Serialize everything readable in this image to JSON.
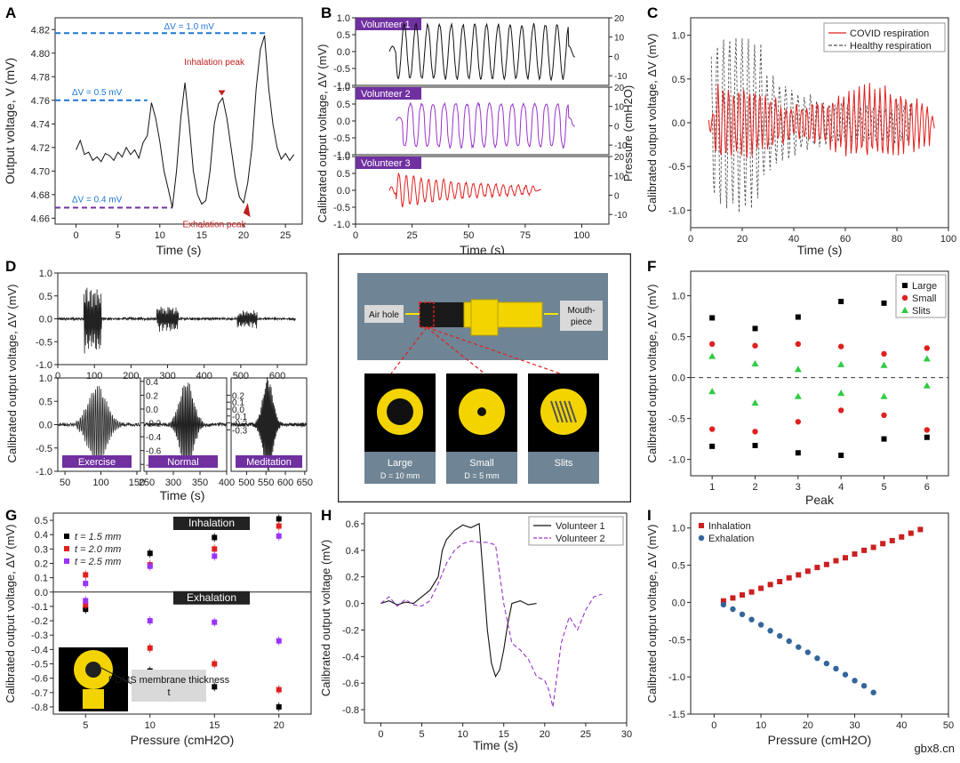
{
  "colors": {
    "blue": "#1f77d0",
    "purple": "#7030a0",
    "red": "#e0201e",
    "black": "#111111",
    "violet": "#9933cc",
    "label_bg": "#7030a0",
    "teal": "#4477aa",
    "yellow": "#f3d400",
    "mid_grey": "#6f8494"
  },
  "watermark": "gbx8.cn",
  "panels": {
    "A": {
      "letter": "A",
      "xlabel": "Time (s)",
      "ylabel": "Output voltage, V (mV)",
      "xlim": [
        -2.5,
        27
      ],
      "ylim": [
        4.655,
        4.83
      ],
      "xticks": [
        0,
        5,
        10,
        15,
        20,
        25
      ],
      "yticks": [
        4.66,
        4.68,
        4.7,
        4.72,
        4.74,
        4.76,
        4.78,
        4.8,
        4.82
      ],
      "series": [
        {
          "x": [
            0,
            0.5,
            1,
            1.5,
            2,
            2.5,
            3,
            3.5,
            4,
            4.5,
            5,
            5.5,
            6,
            6.5,
            7,
            7.5,
            8,
            8.5,
            9,
            9.5,
            10,
            10.5,
            11,
            11.5,
            12,
            12.5,
            13,
            13.5,
            14,
            14.5,
            15,
            15.5,
            16,
            16.5,
            17,
            17.5,
            18,
            18.5,
            19,
            19.5,
            20,
            20.5,
            21,
            21.5,
            22,
            22.5,
            23,
            23.5,
            24,
            24.5,
            25,
            25.5,
            26
          ],
          "y": [
            4.718,
            4.726,
            4.714,
            4.716,
            4.709,
            4.712,
            4.708,
            4.715,
            4.713,
            4.709,
            4.716,
            4.712,
            4.72,
            4.714,
            4.718,
            4.711,
            4.724,
            4.73,
            4.758,
            4.745,
            4.725,
            4.7,
            4.685,
            4.669,
            4.7,
            4.745,
            4.775,
            4.74,
            4.7,
            4.68,
            4.672,
            4.675,
            4.7,
            4.74,
            4.757,
            4.762,
            4.745,
            4.72,
            4.695,
            4.678,
            4.673,
            4.69,
            4.72,
            4.77,
            4.803,
            4.815,
            4.77,
            4.74,
            4.72,
            4.71,
            4.715,
            4.709,
            4.714
          ],
          "color": "#111111"
        }
      ],
      "annotations": {
        "dv1": "ΔV = 1.0 mV",
        "dv05": "ΔV = 0.5 mV",
        "dv04": "ΔV = 0.4 mV",
        "inh": "Inhalation peak",
        "exh": "Exhalation peak"
      },
      "ref_lines": [
        {
          "y": 4.817,
          "x0": -2.5,
          "x1": 22.8,
          "color": "#1f77d0"
        },
        {
          "y": 4.76,
          "x0": -2.5,
          "x1": 8.5,
          "color": "#1f77d0"
        },
        {
          "y": 4.669,
          "x0": -2.5,
          "x1": 11.5,
          "color": "#7030a0"
        }
      ]
    },
    "B": {
      "letter": "B",
      "xlabel": "Time (s)",
      "ylabel": "Calibrated output voltage, ΔV (mV)",
      "ylabel_right": "Pressure (cmH2O)",
      "xlim": [
        0,
        112
      ],
      "xticks": [
        0,
        25,
        50,
        75,
        100
      ],
      "left_ylim": [
        -1.0,
        1.0
      ],
      "left_yticks": [
        -1.0,
        -0.5,
        0.0,
        0.5,
        1.0
      ],
      "right_ylim": [
        -15,
        20
      ],
      "right_yticks": [
        -10,
        0,
        10,
        20
      ],
      "sub": [
        {
          "label": "Volunteer 1",
          "color": "#111111",
          "t0": 15,
          "t1": 97,
          "period": 5.2,
          "amp": 0.8
        },
        {
          "label": "Volunteer 2",
          "color": "#9933cc",
          "t0": 18,
          "t1": 97,
          "period": 5.0,
          "amp": 0.85
        },
        {
          "label": "Volunteer 3",
          "color": "#e0201e",
          "t0": 15,
          "t1": 82,
          "period": 3.3,
          "amp": 0.55
        }
      ]
    },
    "C": {
      "letter": "C",
      "xlabel": "Time (s)",
      "ylabel": "Calibrated output voltage, ΔV (mV)",
      "xlim": [
        0,
        100
      ],
      "ylim": [
        -1.2,
        1.2
      ],
      "xticks": [
        0,
        20,
        40,
        60,
        80,
        100
      ],
      "yticks": [
        -1.0,
        -0.5,
        0.0,
        0.5,
        1.0
      ],
      "legend": [
        {
          "label": "COVID respiration",
          "color": "#e0201e",
          "dash": false
        },
        {
          "label": "Healthy respiration",
          "color": "#555555",
          "dash": true
        }
      ]
    },
    "D": {
      "letter": "D",
      "ylabel": "Calibrated output voltage, ΔV (mV)",
      "xlabel": "Time (s)",
      "top_xlim": [
        0,
        680
      ],
      "top_xticks": [
        0,
        100,
        200,
        300,
        400,
        500,
        600
      ],
      "top_ylim": [
        -1.0,
        1.0
      ],
      "top_yticks": [
        -1.0,
        -0.5,
        0.0,
        0.5,
        1.0
      ],
      "bottom": [
        {
          "label": "Exercise",
          "xlim": [
            40,
            155
          ],
          "xticks": [
            50,
            100,
            150
          ],
          "ylim": [
            -1.0,
            1.0
          ],
          "yticks": [
            -1.0,
            -0.5,
            0.0,
            0.5,
            1.0
          ],
          "right_yticks": [
            -0.8,
            -0.6,
            -0.4,
            -0.2,
            0.0,
            0.2,
            0.4
          ],
          "center": 95,
          "amp": 0.85
        },
        {
          "label": "Normal",
          "xlim": [
            245,
            400
          ],
          "xticks": [
            250,
            300,
            350,
            400
          ],
          "ylim": [
            -0.3,
            0.3
          ],
          "yticks": [],
          "right_yticks": [
            -0.3,
            -0.2,
            -0.1,
            0.0,
            0.1,
            0.2
          ],
          "center": 325,
          "amp": 0.28
        },
        {
          "label": "Meditation",
          "xlim": [
            460,
            655
          ],
          "xticks": [
            500,
            550,
            600,
            650
          ],
          "ylim": [
            -0.2,
            0.2
          ],
          "yticks": [],
          "right_yticks": [],
          "center": 555,
          "amp": 0.2
        }
      ]
    },
    "E": {
      "letter": "E",
      "air_hole": "Air hole",
      "mouthpiece": "Mouth-piece",
      "large": "Large",
      "large_d": "D = 10 mm",
      "small": "Small",
      "small_d": "D = 5 mm",
      "slits": "Slits"
    },
    "F": {
      "letter": "F",
      "xlabel": "Peak",
      "ylabel": "Calibrated output voltage, ΔV (mV)",
      "xlim": [
        0.5,
        6.5
      ],
      "ylim": [
        -1.2,
        1.3
      ],
      "xticks": [
        1,
        2,
        3,
        4,
        5,
        6
      ],
      "yticks": [
        -1.0,
        -0.5,
        0.0,
        0.5,
        1.0
      ],
      "series": [
        {
          "name": "Large",
          "marker": "square",
          "color": "#000000",
          "x": [
            1,
            2,
            3,
            4,
            5,
            6,
            1,
            2,
            3,
            4,
            5,
            6
          ],
          "y": [
            0.73,
            0.6,
            0.74,
            0.93,
            0.91,
            null,
            -0.84,
            -0.83,
            -0.92,
            -0.95,
            -0.75,
            -0.73
          ]
        },
        {
          "name": "Small",
          "marker": "circle",
          "color": "#e0201e",
          "x": [
            1,
            2,
            3,
            4,
            5,
            6,
            1,
            2,
            3,
            4,
            5,
            6
          ],
          "y": [
            0.41,
            0.39,
            0.41,
            0.38,
            0.29,
            0.36,
            -0.63,
            -0.66,
            -0.54,
            -0.4,
            -0.46,
            -0.64
          ]
        },
        {
          "name": "Slits",
          "marker": "triangle",
          "color": "#2ecc40",
          "x": [
            1,
            2,
            3,
            4,
            5,
            6,
            1,
            2,
            3,
            4,
            5,
            6
          ],
          "y": [
            0.26,
            0.17,
            0.1,
            0.16,
            0.15,
            0.23,
            -0.17,
            -0.31,
            -0.23,
            -0.19,
            -0.23,
            -0.1
          ]
        }
      ]
    },
    "G": {
      "letter": "G",
      "xlabel": "Pressure (cmH2O)",
      "ylabel": "Calibrated output voltage, ΔV (mV)",
      "xlim": [
        2.5,
        22.5
      ],
      "ylim": [
        -0.85,
        0.55
      ],
      "xticks": [
        5,
        10,
        15,
        20
      ],
      "yticks": [
        -0.8,
        -0.7,
        -0.6,
        -0.5,
        -0.4,
        -0.3,
        -0.2,
        -0.1,
        0.0,
        0.1,
        0.2,
        0.3,
        0.4,
        0.5
      ],
      "inhalation": "Inhalation",
      "exhalation": "Exhalation",
      "inset_label": "PDMS membrane thickness, t",
      "series": [
        {
          "name": "t = 1.5 mm",
          "color": "#000000",
          "x": [
            5,
            10,
            15,
            20,
            5,
            10,
            15,
            20
          ],
          "y": [
            0.21,
            0.27,
            0.38,
            0.51,
            -0.12,
            -0.55,
            -0.66,
            -0.8
          ]
        },
        {
          "name": "t = 2.0 mm",
          "color": "#e0201e",
          "x": [
            5,
            10,
            15,
            20,
            5,
            10,
            15,
            20
          ],
          "y": [
            0.12,
            0.19,
            0.3,
            0.46,
            -0.09,
            -0.39,
            -0.5,
            -0.68
          ]
        },
        {
          "name": "t = 2.5 mm",
          "color": "#9933ff",
          "x": [
            5,
            10,
            15,
            20,
            5,
            10,
            15,
            20
          ],
          "y": [
            0.06,
            0.18,
            0.25,
            0.39,
            -0.06,
            -0.2,
            -0.21,
            -0.34
          ]
        }
      ]
    },
    "H": {
      "letter": "H",
      "xlabel": "Time (s)",
      "ylabel": "Calibrated output voltage (mV)",
      "xlim": [
        -2,
        30
      ],
      "ylim": [
        -0.9,
        0.68
      ],
      "xticks": [
        0,
        5,
        10,
        15,
        20,
        25,
        30
      ],
      "yticks": [
        -0.8,
        -0.6,
        -0.4,
        -0.2,
        0.0,
        0.2,
        0.4,
        0.6
      ],
      "series": [
        {
          "name": "Volunteer 1",
          "color": "#111111",
          "dash": false,
          "x": [
            0,
            1,
            2,
            3,
            4,
            5,
            6,
            7,
            7.5,
            8,
            9,
            10,
            11,
            12,
            12.5,
            13,
            13.5,
            14,
            14.5,
            15,
            15.5,
            16,
            17,
            18,
            19
          ],
          "y": [
            0.0,
            0.02,
            -0.01,
            0.01,
            0.0,
            0.05,
            0.1,
            0.2,
            0.4,
            0.48,
            0.55,
            0.59,
            0.57,
            0.6,
            0.2,
            -0.2,
            -0.45,
            -0.55,
            -0.5,
            -0.35,
            -0.15,
            0.0,
            0.02,
            -0.01,
            0.0
          ]
        },
        {
          "name": "Volunteer 2",
          "color": "#9933cc",
          "dash": true,
          "x": [
            0,
            1,
            2,
            3,
            4,
            5,
            6,
            7,
            8,
            9,
            10,
            11,
            12,
            13,
            14,
            15,
            16,
            17,
            18,
            19,
            20,
            20.5,
            21,
            22,
            23,
            24,
            25,
            26,
            27
          ],
          "y": [
            0.0,
            0.05,
            -0.02,
            0.03,
            -0.01,
            -0.02,
            0.02,
            0.15,
            0.3,
            0.4,
            0.45,
            0.47,
            0.46,
            0.46,
            0.44,
            0.0,
            -0.3,
            -0.35,
            -0.42,
            -0.55,
            -0.58,
            -0.65,
            -0.78,
            -0.3,
            -0.1,
            -0.2,
            -0.05,
            0.05,
            0.07
          ]
        }
      ]
    },
    "I": {
      "letter": "I",
      "xlabel": "Pressure (cmH2O)",
      "ylabel": "Calibrated output voltage, ΔV (mV)",
      "xlim": [
        -5,
        50
      ],
      "ylim": [
        -1.5,
        1.2
      ],
      "xticks": [
        0,
        10,
        20,
        30,
        40,
        50
      ],
      "yticks": [
        -1.5,
        -1.0,
        -0.5,
        0.0,
        0.5,
        1.0
      ],
      "series": [
        {
          "name": "Inhalation",
          "marker": "square",
          "color": "#cc1f1f",
          "x": [
            2,
            4,
            6,
            8,
            10,
            12,
            14,
            16,
            18,
            20,
            22,
            24,
            26,
            28,
            30,
            32,
            34,
            36,
            38,
            40,
            42,
            44
          ],
          "y": [
            0.02,
            0.06,
            0.1,
            0.14,
            0.19,
            0.24,
            0.28,
            0.33,
            0.37,
            0.42,
            0.47,
            0.51,
            0.56,
            0.6,
            0.65,
            0.7,
            0.74,
            0.79,
            0.83,
            0.88,
            0.93,
            0.98
          ]
        },
        {
          "name": "Exhalation",
          "marker": "circle",
          "color": "#336699",
          "x": [
            2,
            4,
            6,
            8,
            10,
            12,
            14,
            16,
            18,
            20,
            22,
            24,
            26,
            28,
            30,
            32,
            34
          ],
          "y": [
            -0.03,
            -0.09,
            -0.16,
            -0.23,
            -0.3,
            -0.38,
            -0.45,
            -0.52,
            -0.6,
            -0.67,
            -0.75,
            -0.82,
            -0.89,
            -0.97,
            -1.05,
            -1.12,
            -1.21
          ]
        }
      ]
    }
  }
}
